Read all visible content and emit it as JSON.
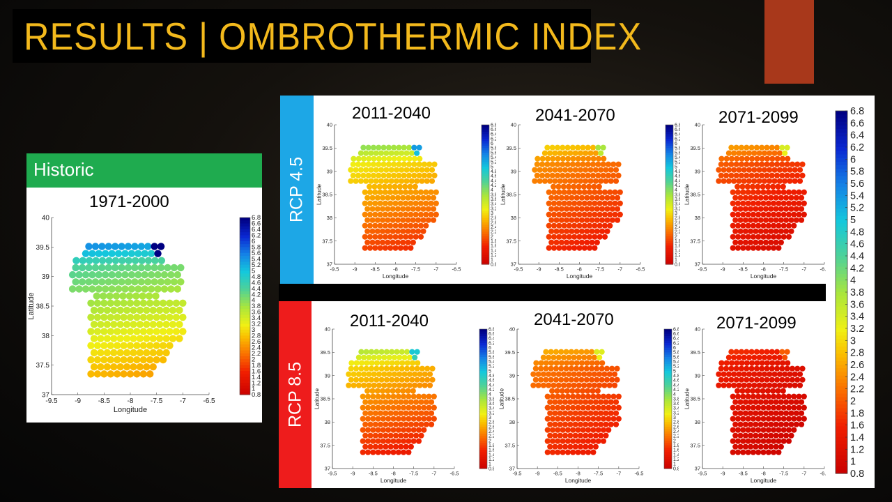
{
  "slide": {
    "title": "RESULTS | OMBROTHERMIC INDEX",
    "accent_color": "#a8381b"
  },
  "historic": {
    "label": "Historic",
    "period": "1971-2000",
    "header_color": "#1fab4f"
  },
  "scenarios": [
    {
      "label": "RCP 4.5",
      "color": "#1da7e6",
      "periods": [
        "2011-2040",
        "2041-2070",
        "2071-2099"
      ]
    },
    {
      "label": "RCP 8.5",
      "color": "#ee1c1c",
      "periods": [
        "2011-2040",
        "2041-2070",
        "2071-2099"
      ]
    }
  ],
  "axes": {
    "xlabel": "Longitude",
    "ylabel": "Latitude",
    "x_ticks": [
      "-9.5",
      "-9",
      "-8.5",
      "-8",
      "-7.5",
      "-7",
      "-6.5"
    ],
    "y_ticks": [
      "40",
      "39.5",
      "39",
      "38.5",
      "38",
      "37.5",
      "37"
    ]
  },
  "colorbar": {
    "ticks": [
      "6.8",
      "6.6",
      "6.4",
      "6.2",
      "6",
      "5.8",
      "5.6",
      "5.4",
      "5.2",
      "5",
      "4.8",
      "4.6",
      "4.4",
      "4.2",
      "4",
      "3.8",
      "3.6",
      "3.4",
      "3.2",
      "3",
      "2.8",
      "2.6",
      "2.4",
      "2.2",
      "2",
      "1.8",
      "1.6",
      "1.4",
      "1.2",
      "1",
      "0.8"
    ],
    "range": [
      0.8,
      6.8
    ],
    "colormap": "red-yellow-green-cyan-blue"
  }
}
